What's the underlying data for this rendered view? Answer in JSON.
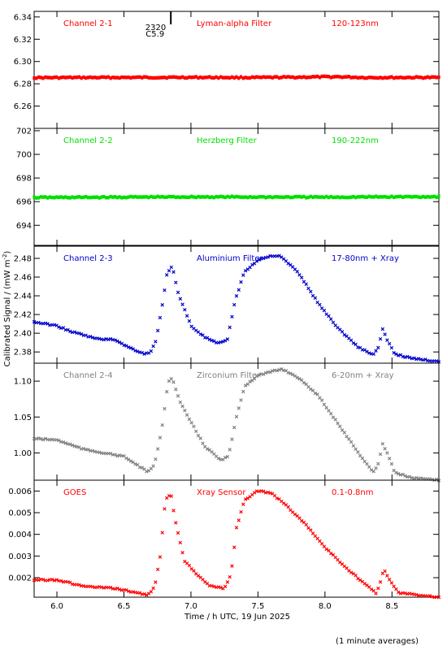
{
  "chart_data": {
    "type": "scatter",
    "xlabel": "Time / h UTC, 19 Jun 2025",
    "ylabel": "Calibrated Signal / (mW m",
    "ylabel_sup": "-2",
    "ylabel_close": ")",
    "footnote": "(1 minute averages)",
    "xlim": [
      5.83,
      8.85
    ],
    "xticks": [
      6.0,
      6.5,
      7.0,
      7.5,
      8.0,
      8.5
    ],
    "xtick_labels": [
      "6.0",
      "6.5",
      "7.0",
      "7.5",
      "8.0",
      "8.5"
    ],
    "markers": [
      {
        "x": 6.85,
        "label_top": "2320",
        "label_bottom": "C5.9",
        "panel": 0
      }
    ],
    "panels": [
      {
        "channel": "Channel 2-1",
        "filter": "Lyman-alpha Filter",
        "band": "120-123nm",
        "color": "#ff0000",
        "ylim": [
          6.24,
          6.345
        ],
        "yticks": [
          6.26,
          6.28,
          6.3,
          6.32,
          6.34
        ],
        "ytick_labels": [
          "6.26",
          "6.28",
          "6.30",
          "6.32",
          "6.34"
        ],
        "marker": "band",
        "keypoints": [
          [
            5.83,
            6.2855
          ],
          [
            7.0,
            6.2858
          ],
          [
            7.5,
            6.2856
          ],
          [
            8.1,
            6.2863
          ],
          [
            8.3,
            6.2856
          ],
          [
            8.85,
            6.2857
          ]
        ]
      },
      {
        "channel": "Channel 2-2",
        "filter": "Herzberg Filter",
        "band": "190-222nm",
        "color": "#00e000",
        "ylim": [
          692.3,
          702.2
        ],
        "yticks": [
          694,
          696,
          698,
          700,
          702
        ],
        "ytick_labels": [
          "694",
          "696",
          "698",
          "700",
          "702"
        ],
        "marker": "band",
        "keypoints": [
          [
            5.83,
            696.35
          ],
          [
            7.0,
            696.4
          ],
          [
            8.0,
            696.38
          ],
          [
            8.85,
            696.42
          ]
        ]
      },
      {
        "channel": "Channel 2-3",
        "filter": "Aluminium Filter",
        "band": "17-80nm + Xray",
        "color": "#0000cc",
        "ylim": [
          2.368,
          2.493
        ],
        "yticks": [
          2.38,
          2.4,
          2.42,
          2.44,
          2.46,
          2.48
        ],
        "ytick_labels": [
          "2.38",
          "2.40",
          "2.42",
          "2.44",
          "2.46",
          "2.48"
        ],
        "marker": "x",
        "keypoints": [
          [
            5.83,
            2.412
          ],
          [
            6.0,
            2.408
          ],
          [
            6.1,
            2.402
          ],
          [
            6.3,
            2.394
          ],
          [
            6.44,
            2.393
          ],
          [
            6.52,
            2.386
          ],
          [
            6.65,
            2.378
          ],
          [
            6.7,
            2.38
          ],
          [
            6.74,
            2.392
          ],
          [
            6.78,
            2.425
          ],
          [
            6.82,
            2.462
          ],
          [
            6.86,
            2.472
          ],
          [
            6.9,
            2.445
          ],
          [
            7.0,
            2.408
          ],
          [
            7.1,
            2.396
          ],
          [
            7.2,
            2.389
          ],
          [
            7.27,
            2.392
          ],
          [
            7.33,
            2.435
          ],
          [
            7.4,
            2.466
          ],
          [
            7.5,
            2.478
          ],
          [
            7.6,
            2.483
          ],
          [
            7.67,
            2.482
          ],
          [
            7.8,
            2.465
          ],
          [
            7.95,
            2.432
          ],
          [
            8.1,
            2.405
          ],
          [
            8.25,
            2.385
          ],
          [
            8.36,
            2.377
          ],
          [
            8.4,
            2.385
          ],
          [
            8.43,
            2.404
          ],
          [
            8.46,
            2.394
          ],
          [
            8.52,
            2.378
          ],
          [
            8.65,
            2.373
          ],
          [
            8.85,
            2.37
          ]
        ]
      },
      {
        "channel": "Channel 2-4",
        "filter": "Zirconium Filter",
        "band": "6-20nm + Xray",
        "color": "#808080",
        "ylim": [
          0.962,
          1.125
        ],
        "yticks": [
          1.0,
          1.05,
          1.1
        ],
        "ytick_labels": [
          "1.00",
          "1.05",
          "1.10"
        ],
        "marker": "x",
        "keypoints": [
          [
            5.83,
            1.02
          ],
          [
            6.0,
            1.018
          ],
          [
            6.2,
            1.005
          ],
          [
            6.5,
            0.995
          ],
          [
            6.6,
            0.983
          ],
          [
            6.68,
            0.973
          ],
          [
            6.73,
            0.985
          ],
          [
            6.78,
            1.03
          ],
          [
            6.83,
            1.1
          ],
          [
            6.86,
            1.104
          ],
          [
            6.92,
            1.07
          ],
          [
            7.0,
            1.043
          ],
          [
            7.1,
            1.01
          ],
          [
            7.22,
            0.99
          ],
          [
            7.28,
            0.995
          ],
          [
            7.34,
            1.05
          ],
          [
            7.4,
            1.093
          ],
          [
            7.5,
            1.108
          ],
          [
            7.6,
            1.113
          ],
          [
            7.68,
            1.117
          ],
          [
            7.8,
            1.105
          ],
          [
            7.95,
            1.08
          ],
          [
            8.1,
            1.04
          ],
          [
            8.25,
            1.0
          ],
          [
            8.36,
            0.973
          ],
          [
            8.4,
            0.985
          ],
          [
            8.43,
            1.013
          ],
          [
            8.47,
            0.998
          ],
          [
            8.52,
            0.973
          ],
          [
            8.65,
            0.965
          ],
          [
            8.85,
            0.962
          ]
        ]
      },
      {
        "channel": "GOES",
        "filter": "Xray Sensor",
        "band": "0.1-0.8nm",
        "color": "#ff0000",
        "ylim": [
          0.0011,
          0.0065
        ],
        "yticks": [
          0.002,
          0.003,
          0.004,
          0.005,
          0.006
        ],
        "ytick_labels": [
          "0.002",
          "0.003",
          "0.004",
          "0.005",
          "0.006"
        ],
        "marker": "x",
        "keypoints": [
          [
            5.83,
            0.0019
          ],
          [
            6.0,
            0.0019
          ],
          [
            6.2,
            0.0016
          ],
          [
            6.44,
            0.0015
          ],
          [
            6.6,
            0.0013
          ],
          [
            6.68,
            0.0012
          ],
          [
            6.73,
            0.0016
          ],
          [
            6.77,
            0.003
          ],
          [
            6.81,
            0.0056
          ],
          [
            6.85,
            0.0059
          ],
          [
            6.88,
            0.0047
          ],
          [
            6.95,
            0.0028
          ],
          [
            7.05,
            0.0021
          ],
          [
            7.15,
            0.0016
          ],
          [
            7.25,
            0.0015
          ],
          [
            7.3,
            0.0022
          ],
          [
            7.34,
            0.0043
          ],
          [
            7.4,
            0.0056
          ],
          [
            7.5,
            0.006
          ],
          [
            7.6,
            0.0059
          ],
          [
            7.7,
            0.0054
          ],
          [
            7.85,
            0.0045
          ],
          [
            8.0,
            0.0034
          ],
          [
            8.15,
            0.0025
          ],
          [
            8.3,
            0.0017
          ],
          [
            8.38,
            0.0013
          ],
          [
            8.41,
            0.0017
          ],
          [
            8.44,
            0.0024
          ],
          [
            8.48,
            0.0019
          ],
          [
            8.55,
            0.0013
          ],
          [
            8.7,
            0.0012
          ],
          [
            8.85,
            0.0011
          ]
        ]
      }
    ]
  }
}
